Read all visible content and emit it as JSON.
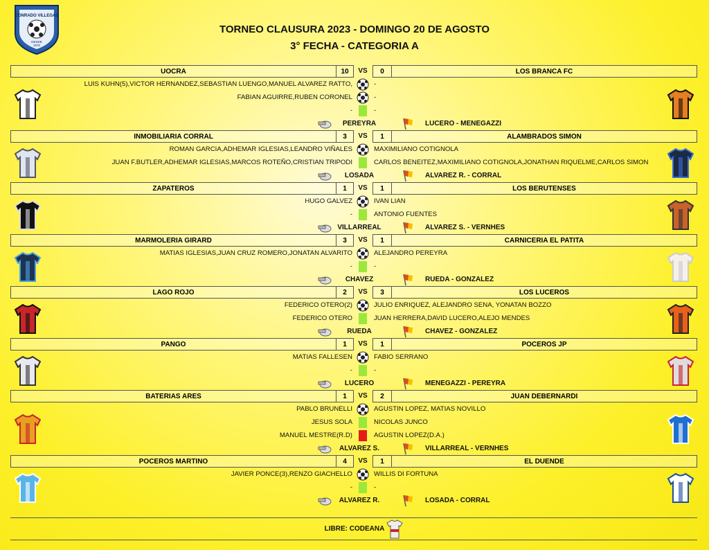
{
  "logo": {
    "name": "CONRADO VILLEGAS",
    "since": "DESDE",
    "year": "1970"
  },
  "header": {
    "title": "TORNEO CLAUSURA 2023 - DOMINGO 20 DE AGOSTO",
    "subtitle": "3° FECHA - CATEGORIA A"
  },
  "matches": [
    {
      "home": "UOCRA",
      "home_score": 10,
      "vs": "VS",
      "away_score": 0,
      "away": "LOS BRANCA FC",
      "events": [
        {
          "type": "goal",
          "home": "LUIS KUHN(5),VICTOR HERNANDEZ,SEBASTIAN LUENGO,MANUEL ALVAREZ RATTO,",
          "away": "-"
        },
        {
          "type": "goal",
          "home": "FABIAN AGUIRRE,RUBEN CORONEL",
          "away": "-"
        },
        {
          "type": "yellow",
          "home": "-",
          "away": "-"
        }
      ],
      "referee": "PEREYRA",
      "assistants": "LUCERO - MENEGAZZI"
    },
    {
      "home": "INMOBILIARIA CORRAL",
      "home_score": 3,
      "vs": "VS",
      "away_score": 1,
      "away": "ALAMBRADOS SIMON",
      "events": [
        {
          "type": "goal",
          "home": "ROMAN GARCIA,ADHEMAR IGLESIAS,LEANDRO VIÑALES",
          "away": "MAXIMILIANO COTIGNOLA"
        },
        {
          "type": "yellow",
          "home": "JUAN F.BUTLER,ADHEMAR IGLESIAS,MARCOS ROTEÑO,CRISTIAN TRIPODI",
          "away": "CARLOS BENEITEZ,MAXIMILIANO COTIGNOLA,JONATHAN RIQUELME,CARLOS SIMON"
        }
      ],
      "referee": "LOSADA",
      "assistants": "ALVAREZ R. - CORRAL"
    },
    {
      "home": "ZAPATEROS",
      "home_score": 1,
      "vs": "VS",
      "away_score": 1,
      "away": "LOS BERUTENSES",
      "events": [
        {
          "type": "goal",
          "home": "HUGO GALVEZ",
          "away": "IVAN LIAN"
        },
        {
          "type": "yellow",
          "home": "-",
          "away": "ANTONIO FUENTES"
        }
      ],
      "referee": "VILLARREAL",
      "assistants": "ALVAREZ S. - VERNHES"
    },
    {
      "home": "MARMOLERIA GIRARD",
      "home_score": 3,
      "vs": "VS",
      "away_score": 1,
      "away": "CARNICERIA EL PATITA",
      "events": [
        {
          "type": "goal",
          "home": "MATIAS IGLESIAS,JUAN CRUZ ROMERO,JONATAN ALVARITO",
          "away": "ALEJANDRO PEREYRA"
        },
        {
          "type": "yellow",
          "home": "-",
          "away": "-"
        }
      ],
      "referee": "CHAVEZ",
      "assistants": "RUEDA - GONZALEZ"
    },
    {
      "home": "LAGO ROJO",
      "home_score": 2,
      "vs": "VS",
      "away_score": 3,
      "away": "LOS LUCEROS",
      "events": [
        {
          "type": "goal",
          "home": "FEDERICO OTERO(2)",
          "away": "JULIO ENRIQUEZ, ALEJANDRO SENA, YONATAN BOZZO"
        },
        {
          "type": "yellow",
          "home": "FEDERICO OTERO",
          "away": "JUAN HERRERA,DAVID LUCERO,ALEJO MENDES"
        }
      ],
      "referee": "RUEDA",
      "assistants": "CHAVEZ - GONZALEZ"
    },
    {
      "home": "PANGO",
      "home_score": 1,
      "vs": "VS",
      "away_score": 1,
      "away": "POCEROS JP",
      "events": [
        {
          "type": "goal",
          "home": "MATIAS FALLESEN",
          "away": "FABIO SERRANO"
        },
        {
          "type": "yellow",
          "home": "-",
          "away": "-"
        }
      ],
      "referee": "LUCERO",
      "assistants": "MENEGAZZI - PEREYRA"
    },
    {
      "home": "BATERIAS ARES",
      "home_score": 1,
      "vs": "VS",
      "away_score": 2,
      "away": "JUAN DEBERNARDI",
      "events": [
        {
          "type": "goal",
          "home": "PABLO BRUNELLI",
          "away": "AGUSTIN LOPEZ, MATIAS NOVILLO"
        },
        {
          "type": "yellow",
          "home": "JESUS SOLA",
          "away": "NICOLAS JUNCO"
        },
        {
          "type": "red",
          "home": "MANUEL MESTRE(R.D)",
          "away": "AGUSTIN LOPEZ(D.A.)"
        }
      ],
      "referee": "ALVAREZ S.",
      "assistants": "VILLARREAL - VERNHES"
    },
    {
      "home": "POCEROS MARTINO",
      "home_score": 4,
      "vs": "VS",
      "away_score": 1,
      "away": "EL DUENDE",
      "events": [
        {
          "type": "goal",
          "home": "JAVIER PONCE(3),RENZO GIACHELLO",
          "away": "WILLIS DI FORTUNA"
        },
        {
          "type": "yellow",
          "home": "-",
          "away": "-"
        }
      ],
      "referee": "ALVAREZ R.",
      "assistants": "LOSADA - CORRAL"
    }
  ],
  "footer": "LIBRE: CODEANA"
}
